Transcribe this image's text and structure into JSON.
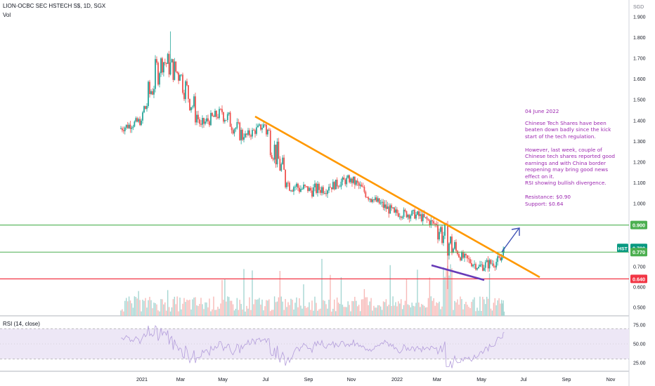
{
  "header": {
    "symbol_line": "LION-OCBC SEC HSTECH S$, 1D, SGX",
    "volume_label": "Vol"
  },
  "rsi_label": "RSI (14, close)",
  "annotation": {
    "date": "04 June 2022",
    "para1": "Chinese Tech Shares have been beaten down badly since the kick start of the tech regulation.",
    "para2": "However, last week, couple of Chinese tech shares reported good earnings and with China border reopening may bring good news effect on it.",
    "para3": "RSI showing bullish divergence.",
    "resistance": "Resistance: $0.90",
    "support": "Support: $0.64"
  },
  "colors": {
    "up": "#26a69a",
    "down": "#ef5350",
    "trendline": "#ff9800",
    "divergence": "#673ab7",
    "arrow": "#3f51b5",
    "resistance_line": "#4caf50",
    "support_line": "#f23645",
    "current_line": "#089981",
    "rsi_line": "#b39ddb",
    "rsi_band": "#ede7f6",
    "note_text": "#9c27b0"
  },
  "chart_data": {
    "type": "candlestick",
    "currency": "SGD",
    "y_ticks": [
      "1.900",
      "1.800",
      "1.700",
      "1.600",
      "1.500",
      "1.400",
      "1.300",
      "1.200",
      "1.100",
      "1.000",
      "0.700",
      "0.600",
      "0.500"
    ],
    "x_ticks": [
      "2021",
      "Mar",
      "May",
      "Jul",
      "Sep",
      "Nov",
      "2022",
      "Mar",
      "May",
      "Jul",
      "Sep",
      "Nov"
    ],
    "ohlc_monthly_approx": [
      {
        "month": "2020-12",
        "open": 1.36,
        "high": 1.42,
        "low": 1.32,
        "close": 1.4
      },
      {
        "month": "2021-01",
        "open": 1.4,
        "high": 1.72,
        "low": 1.33,
        "close": 1.7
      },
      {
        "month": "2021-02",
        "open": 1.7,
        "high": 1.83,
        "low": 1.55,
        "close": 1.62
      },
      {
        "month": "2021-03",
        "open": 1.62,
        "high": 1.64,
        "low": 1.33,
        "close": 1.38
      },
      {
        "month": "2021-04",
        "open": 1.38,
        "high": 1.48,
        "low": 1.35,
        "close": 1.44
      },
      {
        "month": "2021-05",
        "open": 1.44,
        "high": 1.46,
        "low": 1.26,
        "close": 1.32
      },
      {
        "month": "2021-06",
        "open": 1.32,
        "high": 1.4,
        "low": 1.3,
        "close": 1.38
      },
      {
        "month": "2021-07",
        "open": 1.38,
        "high": 1.4,
        "low": 1.06,
        "close": 1.1
      },
      {
        "month": "2021-08",
        "open": 1.1,
        "high": 1.18,
        "low": 1.0,
        "close": 1.06
      },
      {
        "month": "2021-09",
        "open": 1.06,
        "high": 1.16,
        "low": 1.02,
        "close": 1.08
      },
      {
        "month": "2021-10",
        "open": 1.08,
        "high": 1.14,
        "low": 1.04,
        "close": 1.12
      },
      {
        "month": "2021-11",
        "open": 1.12,
        "high": 1.13,
        "low": 1.0,
        "close": 1.02
      },
      {
        "month": "2021-12",
        "open": 1.02,
        "high": 1.04,
        "low": 0.93,
        "close": 0.96
      },
      {
        "month": "2022-01",
        "open": 0.96,
        "high": 1.01,
        "low": 0.91,
        "close": 0.95
      },
      {
        "month": "2022-02",
        "open": 0.95,
        "high": 0.98,
        "low": 0.88,
        "close": 0.9
      },
      {
        "month": "2022-03",
        "open": 0.9,
        "high": 0.92,
        "low": 0.59,
        "close": 0.76
      },
      {
        "month": "2022-04",
        "open": 0.76,
        "high": 0.78,
        "low": 0.68,
        "close": 0.7
      },
      {
        "month": "2022-05",
        "open": 0.7,
        "high": 0.76,
        "low": 0.64,
        "close": 0.73
      },
      {
        "month": "2022-06",
        "open": 0.73,
        "high": 0.8,
        "low": 0.72,
        "close": 0.79
      }
    ],
    "rsi_ticks": [
      "75.00",
      "50.00",
      "25.00"
    ],
    "rsi_upper": 70,
    "rsi_lower": 30,
    "levels": [
      {
        "name": "resistance",
        "value": 0.9,
        "label": "0.900"
      },
      {
        "name": "current",
        "value": 0.79,
        "label": "0.790",
        "symbol": "HST"
      },
      {
        "name": "previous-close",
        "value": 0.77,
        "label": "0.770"
      },
      {
        "name": "support",
        "value": 0.64,
        "label": "0.640"
      }
    ]
  }
}
